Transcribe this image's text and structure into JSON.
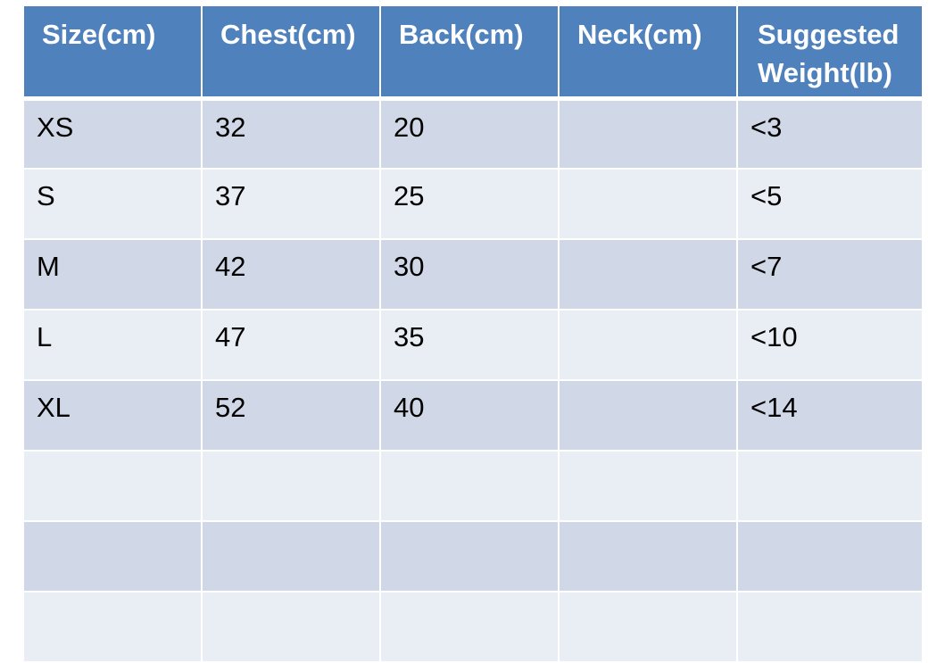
{
  "table": {
    "headers": [
      "Size(cm)",
      "Chest(cm)",
      "Back(cm)",
      "Neck(cm)",
      "Suggested Weight(lb)"
    ],
    "rows": [
      [
        "XS",
        "32",
        "20",
        "",
        "<3"
      ],
      [
        "S",
        "37",
        "25",
        "",
        "<5"
      ],
      [
        "M",
        "42",
        "30",
        "",
        "<7"
      ],
      [
        "L",
        "47",
        "35",
        "",
        "<10"
      ],
      [
        "XL",
        "52",
        "40",
        "",
        "<14"
      ],
      [
        "",
        "",
        "",
        "",
        ""
      ],
      [
        "",
        "",
        "",
        "",
        ""
      ],
      [
        "",
        "",
        "",
        "",
        ""
      ]
    ]
  },
  "colors": {
    "header_bg": "#4f81bd",
    "header_text": "#ffffff",
    "row_odd_bg": "#d0d8e8",
    "row_even_bg": "#e9edf4"
  }
}
